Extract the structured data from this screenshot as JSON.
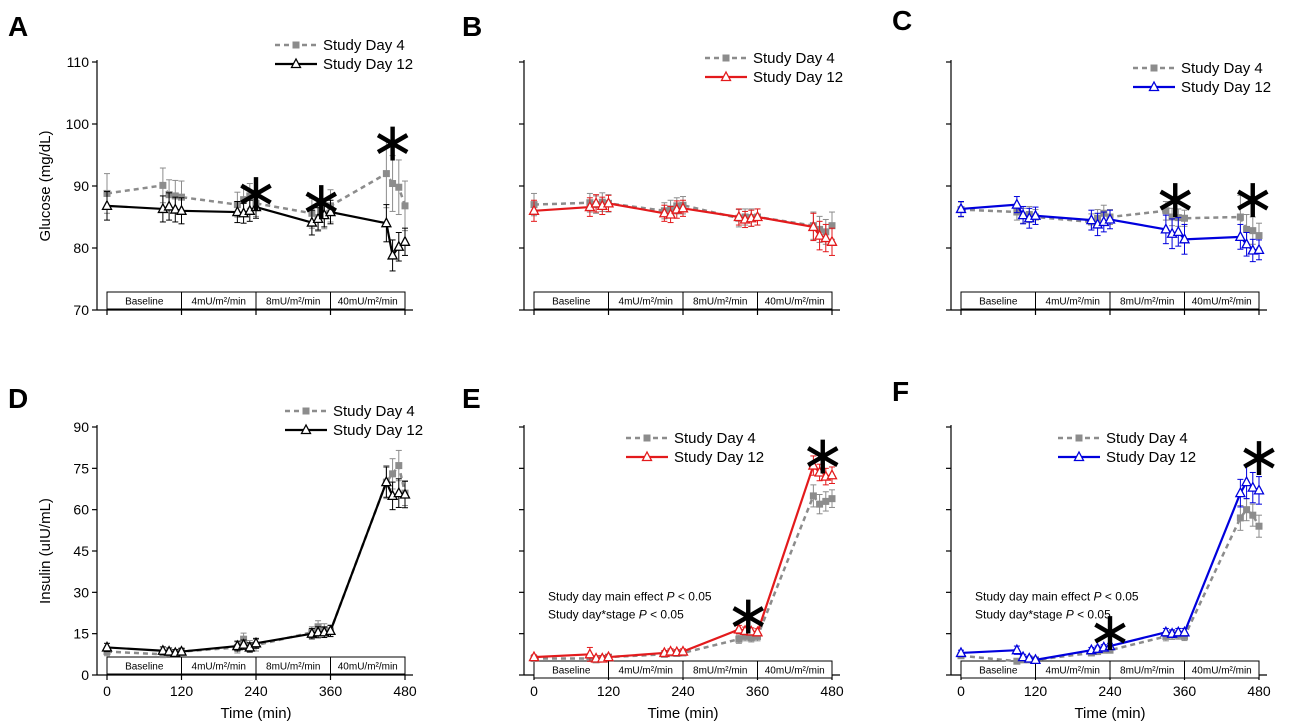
{
  "figure": {
    "stage_labels": [
      "Baseline",
      "4mU/m²/min",
      "8mU/m²/min",
      "40mU/m²/min"
    ],
    "series_colors": {
      "day4": "#8c8c8c"
    }
  },
  "chart_data": [
    {
      "panel": "A",
      "type": "line",
      "ylabel": "Glucose (mg/dL)",
      "xlabel": "",
      "ylim": [
        70,
        110
      ],
      "yticks": [
        70,
        80,
        90,
        100,
        110
      ],
      "show_ytick_labels": true,
      "xlim": [
        0,
        480
      ],
      "xticks": [
        0,
        120,
        240,
        360,
        480
      ],
      "show_xtick_labels": false,
      "legend": "top-right",
      "grid": false,
      "series": [
        {
          "name": "Study Day 4",
          "style": "dashed-square",
          "color": "#8c8c8c",
          "x": [
            0,
            90,
            100,
            110,
            120,
            210,
            220,
            230,
            240,
            330,
            340,
            350,
            360,
            450,
            460,
            470,
            480
          ],
          "y": [
            88.8,
            90.1,
            88.6,
            88.4,
            88.2,
            87.0,
            87.8,
            88.4,
            87.2,
            85.6,
            84.9,
            85.2,
            86.8,
            92.0,
            90.4,
            89.8,
            86.8
          ],
          "err": [
            3.2,
            2.8,
            2.4,
            2.5,
            2.6,
            2.0,
            2.2,
            2.0,
            2.1,
            2.4,
            2.2,
            2.1,
            2.6,
            5.5,
            4.5,
            4.4,
            4.0
          ]
        },
        {
          "name": "Study Day 12",
          "style": "solid-triangle",
          "color": "#000000",
          "x": [
            0,
            90,
            100,
            110,
            120,
            210,
            220,
            230,
            240,
            330,
            340,
            350,
            360,
            450,
            460,
            470,
            480
          ],
          "y": [
            86.8,
            86.3,
            86.7,
            86.2,
            86.0,
            85.8,
            85.6,
            86.0,
            86.6,
            84.1,
            84.7,
            85.3,
            85.8,
            84.0,
            78.8,
            80.2,
            81.0
          ],
          "err": [
            2.3,
            2.1,
            2.2,
            2.0,
            2.1,
            1.7,
            1.6,
            1.7,
            1.8,
            2.0,
            1.8,
            1.9,
            1.9,
            3.0,
            2.5,
            2.3,
            2.2
          ]
        }
      ],
      "significance_marks": [
        {
          "x": 240,
          "y": 90.2
        },
        {
          "x": 345,
          "y": 88.9
        },
        {
          "x": 460,
          "y": 98.3
        }
      ],
      "annotations": []
    },
    {
      "panel": "B",
      "type": "line",
      "ylabel": "",
      "xlabel": "",
      "ylim": [
        70,
        110
      ],
      "yticks": [
        70,
        80,
        90,
        100,
        110
      ],
      "show_ytick_labels": false,
      "xlim": [
        0,
        480
      ],
      "xticks": [
        0,
        120,
        240,
        360,
        480
      ],
      "show_xtick_labels": false,
      "legend": "top-right",
      "grid": false,
      "series": [
        {
          "name": "Study Day 4",
          "style": "dashed-square",
          "color": "#8c8c8c",
          "x": [
            0,
            90,
            100,
            110,
            120,
            210,
            220,
            230,
            240,
            330,
            340,
            350,
            360,
            450,
            460,
            470,
            480
          ],
          "y": [
            87.0,
            87.3,
            87.0,
            87.4,
            87.2,
            86.0,
            86.3,
            86.8,
            86.9,
            84.8,
            85.0,
            84.9,
            85.0,
            83.6,
            83.0,
            82.6,
            83.6
          ],
          "err": [
            1.8,
            1.5,
            1.4,
            1.5,
            1.4,
            1.3,
            1.4,
            1.3,
            1.4,
            1.4,
            1.3,
            1.4,
            1.3,
            2.2,
            2.1,
            2.0,
            2.2
          ]
        },
        {
          "name": "Study Day 12",
          "style": "solid-triangle",
          "color": "#e31a1c",
          "x": [
            0,
            90,
            100,
            110,
            120,
            210,
            220,
            230,
            240,
            330,
            340,
            350,
            360,
            450,
            460,
            470,
            480
          ],
          "y": [
            86.0,
            86.6,
            87.2,
            86.8,
            87.2,
            85.6,
            85.4,
            86.2,
            86.4,
            85.0,
            84.6,
            84.8,
            85.0,
            83.4,
            82.0,
            81.6,
            81.0
          ],
          "err": [
            1.7,
            1.5,
            1.4,
            1.4,
            1.3,
            1.3,
            1.3,
            1.4,
            1.3,
            1.3,
            1.3,
            1.3,
            1.3,
            2.2,
            2.3,
            2.2,
            2.2
          ]
        }
      ],
      "significance_marks": [],
      "annotations": []
    },
    {
      "panel": "C",
      "type": "line",
      "ylabel": "",
      "xlabel": "",
      "ylim": [
        70,
        110
      ],
      "yticks": [
        70,
        80,
        90,
        100,
        110
      ],
      "show_ytick_labels": false,
      "xlim": [
        0,
        480
      ],
      "xticks": [
        0,
        120,
        240,
        360,
        480
      ],
      "show_xtick_labels": false,
      "legend": "top-right",
      "grid": false,
      "series": [
        {
          "name": "Study Day 4",
          "style": "dashed-square",
          "color": "#8c8c8c",
          "x": [
            0,
            90,
            100,
            110,
            120,
            210,
            220,
            230,
            240,
            330,
            340,
            350,
            360,
            450,
            460,
            470,
            480
          ],
          "y": [
            86.2,
            85.8,
            85.2,
            85.4,
            85.0,
            84.2,
            84.8,
            85.6,
            85.0,
            86.0,
            85.0,
            84.9,
            84.8,
            85.0,
            83.0,
            82.8,
            82.0
          ],
          "err": [
            1.2,
            1.3,
            1.2,
            1.3,
            1.2,
            1.3,
            1.4,
            1.3,
            1.2,
            1.5,
            1.4,
            1.4,
            1.3,
            3.5,
            2.4,
            2.2,
            2.0
          ]
        },
        {
          "name": "Study Day 12",
          "style": "solid-triangle",
          "color": "#0000dd",
          "x": [
            0,
            90,
            100,
            110,
            120,
            210,
            220,
            230,
            240,
            330,
            340,
            350,
            360,
            450,
            460,
            470,
            480
          ],
          "y": [
            86.3,
            87.0,
            85.3,
            84.8,
            85.2,
            84.5,
            83.8,
            84.2,
            84.6,
            83.0,
            82.3,
            82.6,
            81.4,
            81.8,
            80.6,
            79.6,
            79.7
          ],
          "err": [
            1.2,
            1.3,
            1.4,
            1.6,
            1.4,
            1.6,
            1.8,
            1.6,
            1.5,
            2.3,
            2.4,
            2.3,
            2.4,
            2.0,
            1.9,
            1.8,
            1.6
          ]
        }
      ],
      "significance_marks": [
        {
          "x": 345,
          "y": 89.2
        },
        {
          "x": 470,
          "y": 89.2
        }
      ],
      "annotations": []
    },
    {
      "panel": "D",
      "type": "line",
      "ylabel": "Insulin (uIU/mL)",
      "xlabel": "Time (min)",
      "ylim": [
        0,
        90
      ],
      "yticks": [
        0,
        15,
        30,
        45,
        60,
        75,
        90
      ],
      "show_ytick_labels": true,
      "xlim": [
        0,
        480
      ],
      "xticks": [
        0,
        120,
        240,
        360,
        480
      ],
      "show_xtick_labels": true,
      "legend": "top-right",
      "grid": false,
      "series": [
        {
          "name": "Study Day 4",
          "style": "dashed-square",
          "color": "#8c8c8c",
          "x": [
            0,
            90,
            100,
            110,
            120,
            210,
            220,
            230,
            240,
            330,
            340,
            350,
            360,
            450,
            460,
            470,
            480
          ],
          "y": [
            8.5,
            7.5,
            8.0,
            8.0,
            8.5,
            10.0,
            13.0,
            10.5,
            10.8,
            15.5,
            17.5,
            16.5,
            16.0,
            70.0,
            73.0,
            76.0,
            66.0
          ],
          "err": [
            1.5,
            1.2,
            1.2,
            1.2,
            1.3,
            2.0,
            2.2,
            2.0,
            2.1,
            2.0,
            2.2,
            2.1,
            2.1,
            6.0,
            5.5,
            5.5,
            4.5
          ]
        },
        {
          "name": "Study Day 12",
          "style": "solid-triangle",
          "color": "#000000",
          "x": [
            0,
            90,
            100,
            110,
            120,
            210,
            220,
            230,
            240,
            330,
            340,
            350,
            360,
            450,
            460,
            470,
            480
          ],
          "y": [
            10.0,
            8.8,
            8.5,
            8.0,
            8.5,
            10.5,
            11.0,
            10.0,
            11.5,
            15.0,
            15.5,
            15.5,
            16.0,
            70.0,
            65.0,
            66.0,
            65.5
          ],
          "err": [
            1.5,
            1.4,
            1.3,
            1.2,
            1.2,
            1.8,
            1.7,
            1.7,
            1.8,
            1.9,
            2.0,
            1.9,
            2.0,
            5.5,
            5.0,
            5.2,
            4.8
          ]
        }
      ],
      "significance_marks": [],
      "annotations": []
    },
    {
      "panel": "E",
      "type": "line",
      "ylabel": "",
      "xlabel": "Time (min)",
      "ylim": [
        0,
        90
      ],
      "yticks": [
        0,
        15,
        30,
        45,
        60,
        75,
        90
      ],
      "show_ytick_labels": false,
      "xlim": [
        0,
        480
      ],
      "xticks": [
        0,
        120,
        240,
        360,
        480
      ],
      "show_xtick_labels": true,
      "legend": "top-right",
      "grid": false,
      "series": [
        {
          "name": "Study Day 4",
          "style": "dashed-square",
          "color": "#8c8c8c",
          "x": [
            0,
            90,
            100,
            110,
            120,
            210,
            220,
            230,
            240,
            330,
            340,
            350,
            360,
            450,
            460,
            470,
            480
          ],
          "y": [
            6.0,
            6.0,
            5.5,
            6.0,
            6.5,
            7.5,
            8.0,
            7.8,
            8.0,
            13.0,
            14.0,
            13.5,
            14.0,
            65.0,
            62.0,
            63.0,
            64.0
          ],
          "err": [
            0.8,
            0.8,
            0.7,
            0.7,
            0.8,
            0.9,
            0.9,
            0.9,
            0.9,
            1.5,
            1.6,
            1.5,
            1.6,
            4.0,
            3.5,
            3.5,
            3.2
          ]
        },
        {
          "name": "Study Day 12",
          "style": "solid-triangle",
          "color": "#e31a1c",
          "x": [
            0,
            90,
            100,
            110,
            120,
            210,
            220,
            230,
            240,
            330,
            340,
            350,
            360,
            450,
            460,
            470,
            480
          ],
          "y": [
            6.5,
            7.5,
            6.0,
            6.0,
            6.5,
            8.0,
            8.5,
            8.3,
            8.5,
            16.5,
            16.0,
            15.8,
            15.5,
            76.0,
            73.5,
            72.0,
            72.5
          ],
          "err": [
            0.8,
            2.5,
            1.0,
            1.0,
            0.9,
            0.9,
            1.0,
            0.9,
            1.0,
            1.5,
            1.4,
            1.3,
            1.3,
            3.5,
            3.0,
            3.0,
            3.0
          ]
        }
      ],
      "significance_marks": [
        {
          "x": 345,
          "y": 24.5
        },
        {
          "x": 465,
          "y": 82.5
        }
      ],
      "annotations": [
        {
          "text": "Study day main effect ",
          "italic": "P",
          "rest": " < 0.05"
        },
        {
          "text": "Study day*stage ",
          "italic": "P",
          "rest": " < 0.05"
        }
      ]
    },
    {
      "panel": "F",
      "type": "line",
      "ylabel": "",
      "xlabel": "Time (min)",
      "ylim": [
        0,
        90
      ],
      "yticks": [
        0,
        15,
        30,
        45,
        60,
        75,
        90
      ],
      "show_ytick_labels": false,
      "xlim": [
        0,
        480
      ],
      "xticks": [
        0,
        120,
        240,
        360,
        480
      ],
      "show_xtick_labels": true,
      "legend": "top-right",
      "grid": false,
      "series": [
        {
          "name": "Study Day 4",
          "style": "dashed-square",
          "color": "#8c8c8c",
          "x": [
            0,
            90,
            100,
            110,
            120,
            210,
            220,
            230,
            240,
            330,
            340,
            350,
            360,
            450,
            460,
            470,
            480
          ],
          "y": [
            7.0,
            5.0,
            5.5,
            5.5,
            5.5,
            8.0,
            8.5,
            9.0,
            9.0,
            14.0,
            14.5,
            14.5,
            14.0,
            57.0,
            60.0,
            58.0,
            54.0
          ],
          "err": [
            0.8,
            0.7,
            0.7,
            0.7,
            0.7,
            0.9,
            0.9,
            1.0,
            1.0,
            1.6,
            1.6,
            1.5,
            1.5,
            4.5,
            4.0,
            4.0,
            4.0
          ]
        },
        {
          "name": "Study Day 12",
          "style": "solid-triangle",
          "color": "#0000dd",
          "x": [
            0,
            90,
            100,
            110,
            120,
            210,
            220,
            230,
            240,
            330,
            340,
            350,
            360,
            450,
            460,
            470,
            480
          ],
          "y": [
            8.0,
            9.0,
            6.5,
            6.0,
            5.5,
            9.0,
            9.5,
            10.0,
            10.5,
            15.5,
            15.0,
            15.5,
            15.5,
            66.0,
            70.0,
            68.0,
            67.0
          ],
          "err": [
            1.0,
            1.5,
            1.0,
            0.9,
            0.8,
            1.0,
            1.0,
            1.0,
            1.0,
            1.4,
            1.4,
            1.4,
            1.4,
            5.0,
            6.0,
            5.5,
            5.0
          ]
        }
      ],
      "significance_marks": [
        {
          "x": 240,
          "y": 18.5
        },
        {
          "x": 480,
          "y": 82.0
        }
      ],
      "annotations": [
        {
          "text": "Study day main effect ",
          "italic": "P",
          "rest": " < 0.05"
        },
        {
          "text": "Study day*stage ",
          "italic": "P",
          "rest": " < 0.05"
        }
      ]
    }
  ]
}
